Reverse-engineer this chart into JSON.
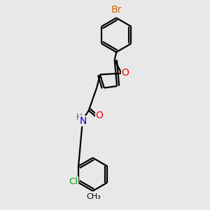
{
  "bg_color": "#e8e8e8",
  "atom_colors": {
    "Br": "#cc6600",
    "O": "#ff0000",
    "N": "#0000cc",
    "H": "#555555",
    "Cl": "#00aa00",
    "C": "#000000"
  },
  "bond_width": 1.6,
  "font_size": 9.5,
  "xlim": [
    -0.1,
    1.05
  ],
  "ylim": [
    -0.7,
    2.85
  ]
}
